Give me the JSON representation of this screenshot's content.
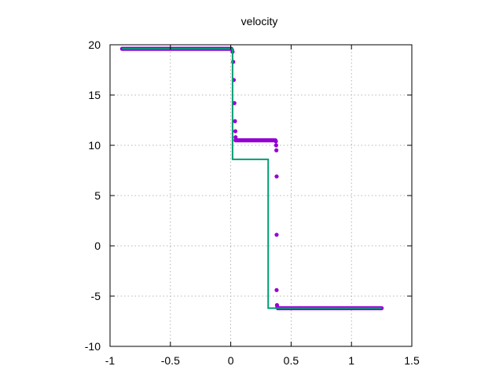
{
  "chart_data": {
    "type": "line",
    "title": "velocity",
    "xlabel": "",
    "ylabel": "",
    "xlim": [
      -1,
      1.5
    ],
    "ylim": [
      -10,
      20
    ],
    "x_ticks": [
      -1,
      -0.5,
      0,
      0.5,
      1,
      1.5
    ],
    "x_tick_labels": [
      "-1",
      "-0.5",
      "0",
      "0.5",
      "1",
      "1.5"
    ],
    "y_ticks": [
      -10,
      -5,
      0,
      5,
      10,
      15,
      20
    ],
    "y_tick_labels": [
      "-10",
      "-5",
      "0",
      "5",
      "10",
      "15",
      "20"
    ],
    "grid": true,
    "legend": "none",
    "series": [
      {
        "style": "points",
        "color": "#9400d3",
        "segments": [
          {
            "x_from": -0.9,
            "x_to": 0.0,
            "y": 19.6,
            "step": 0.01
          },
          {
            "x_from": 0.04,
            "x_to": 0.37,
            "y": 10.5,
            "step": 0.01
          },
          {
            "x_from": 0.39,
            "x_to": 1.25,
            "y": -6.2,
            "step": 0.01
          }
        ],
        "points": [
          {
            "x": 0.005,
            "y": 19.6
          },
          {
            "x": 0.01,
            "y": 19.5
          },
          {
            "x": 0.015,
            "y": 19.3
          },
          {
            "x": 0.02,
            "y": 18.3
          },
          {
            "x": 0.025,
            "y": 16.5
          },
          {
            "x": 0.03,
            "y": 14.2
          },
          {
            "x": 0.035,
            "y": 12.4
          },
          {
            "x": 0.038,
            "y": 11.4
          },
          {
            "x": 0.04,
            "y": 10.8
          },
          {
            "x": 0.374,
            "y": 10.4
          },
          {
            "x": 0.376,
            "y": 10.0
          },
          {
            "x": 0.378,
            "y": 9.5
          },
          {
            "x": 0.38,
            "y": 6.9
          },
          {
            "x": 0.38,
            "y": 1.1
          },
          {
            "x": 0.38,
            "y": -4.4
          },
          {
            "x": 0.383,
            "y": -5.9
          },
          {
            "x": 0.386,
            "y": -6.1
          }
        ]
      },
      {
        "style": "line",
        "color": "#009e73",
        "data": [
          [
            -0.9,
            19.6
          ],
          [
            0.015,
            19.6
          ],
          [
            0.015,
            8.6
          ],
          [
            0.31,
            8.6
          ],
          [
            0.31,
            -6.2
          ],
          [
            1.25,
            -6.2
          ]
        ]
      }
    ]
  }
}
